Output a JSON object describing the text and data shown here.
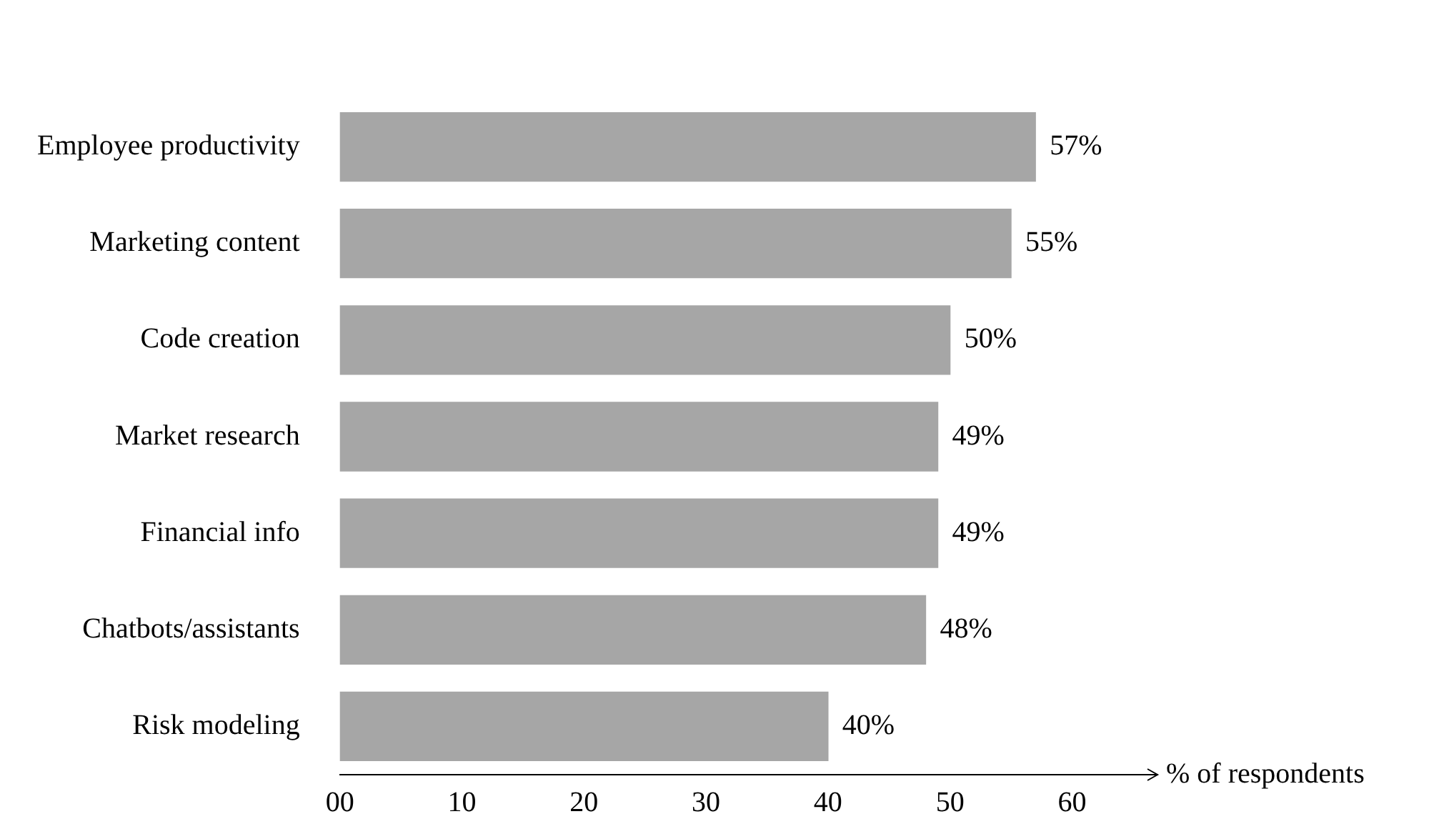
{
  "chart_data": {
    "type": "bar",
    "orientation": "horizontal",
    "categories": [
      "Employee productivity",
      "Marketing content",
      "Code creation",
      "Market research",
      "Financial info",
      "Chatbots/assistants",
      "Risk modeling"
    ],
    "values": [
      57,
      55,
      50,
      49,
      49,
      48,
      40
    ],
    "value_labels": [
      "57%",
      "55%",
      "50%",
      "49%",
      "49%",
      "48%",
      "40%"
    ],
    "color": "#a6a6a6",
    "xlim": [
      0,
      67
    ],
    "xticks": [
      {
        "value": 0,
        "label": "00"
      },
      10,
      20,
      30,
      40,
      50,
      60
    ],
    "xlabel": "% of respondents"
  }
}
